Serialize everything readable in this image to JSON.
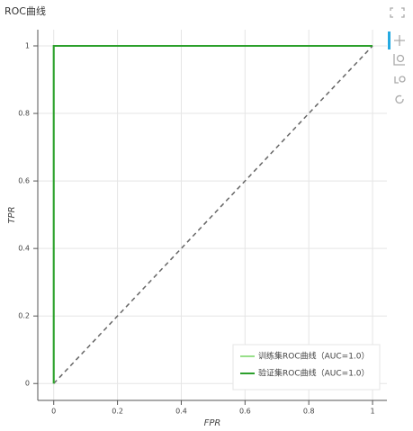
{
  "chart_data": {
    "type": "line",
    "title": "ROC曲线",
    "x_label": "FPR",
    "y_label": "TPR",
    "xlim": [
      -0.05,
      1.045
    ],
    "ylim": [
      -0.05,
      1.048
    ],
    "xticks": [
      0,
      0.2,
      0.4,
      0.6,
      0.8,
      1
    ],
    "yticks": [
      0,
      0.2,
      0.4,
      0.6,
      0.8,
      1
    ],
    "grid": true,
    "legend": "bottom-right",
    "series": [
      {
        "name": "训练集ROC曲线（AUC=1.0）",
        "color": "#98df8a",
        "x": [
          0,
          0,
          1
        ],
        "values": [
          0,
          1,
          1
        ]
      },
      {
        "name": "验证集ROC曲线（AUC=1.0）",
        "color": "#2ca02c",
        "x": [
          0,
          0,
          1
        ],
        "values": [
          0,
          1,
          1
        ]
      }
    ],
    "diagonal": {
      "color": "#666666",
      "x": [
        0,
        1
      ],
      "values": [
        0,
        1
      ]
    }
  }
}
